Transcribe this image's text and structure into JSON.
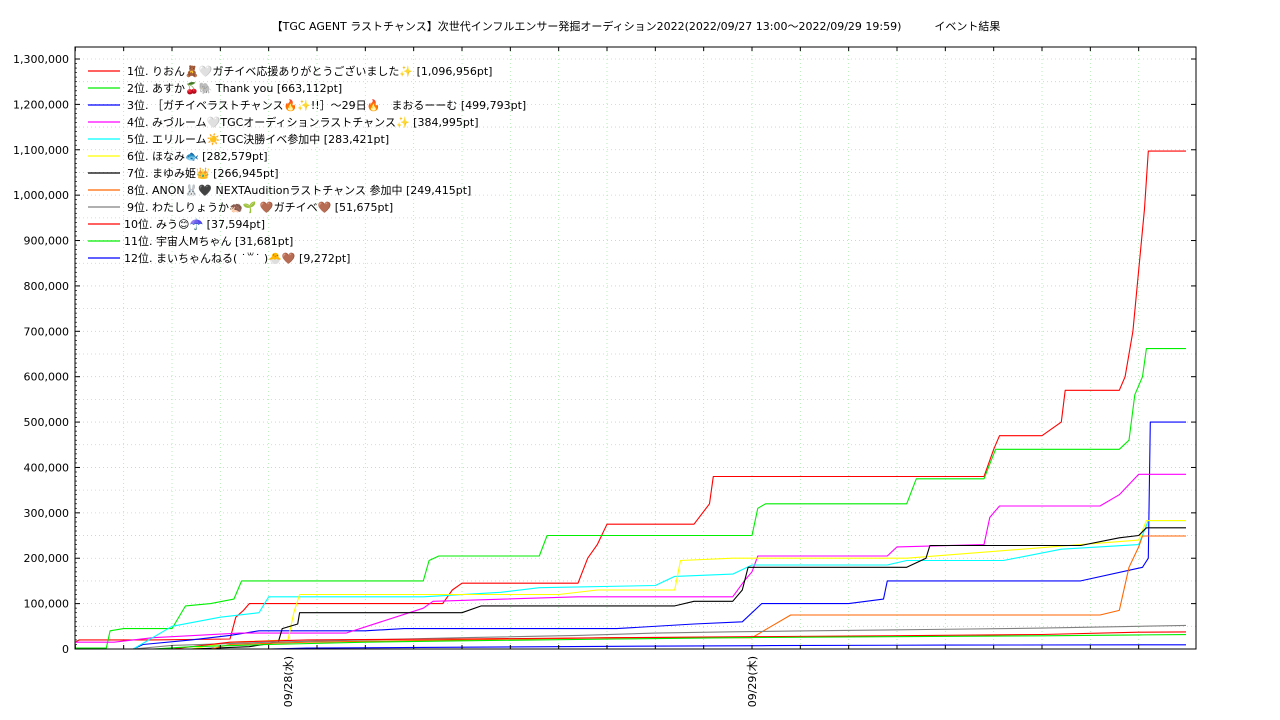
{
  "chart_data": {
    "type": "line",
    "title": "【TGC AGENT ラストチャンス】次世代インフルエンサー発掘オーディション2022(2022/09/27 13:00〜2022/09/29 19:59)　　　イベント結果",
    "xlabel": "",
    "ylabel": "",
    "xlim": [
      0,
      55
    ],
    "ylim": [
      0,
      1350000
    ],
    "x_unit": "hours since 2022/09/27 13:00",
    "x_ticks": [
      {
        "x": 11,
        "label": "09/28(水)"
      },
      {
        "x": 35,
        "label": "09/29(木)"
      }
    ],
    "y_ticks": [
      0,
      100000,
      200000,
      300000,
      400000,
      500000,
      600000,
      700000,
      800000,
      900000,
      1000000,
      1100000,
      1200000,
      1300000
    ],
    "y_tick_labels": [
      "0",
      "100,000",
      "200,000",
      "300,000",
      "400,000",
      "500,000",
      "600,000",
      "700,000",
      "800,000",
      "900,000",
      "1,000,000",
      "1,100,000",
      "1,200,000",
      "1,300,000"
    ],
    "grid": true,
    "legend_position": "top-left",
    "series": [
      {
        "name": "1位. りおん🧸🤍ガチイベ応援ありがとうございました✨ [1,096,956pt]",
        "color": "#ff0000",
        "points": [
          [
            0,
            15000
          ],
          [
            0.2,
            20000
          ],
          [
            4,
            20000
          ],
          [
            8,
            22000
          ],
          [
            8.3,
            70000
          ],
          [
            8.7,
            85000
          ],
          [
            9,
            100000
          ],
          [
            14,
            100000
          ],
          [
            19,
            100000
          ],
          [
            19.5,
            130000
          ],
          [
            20,
            145000
          ],
          [
            26,
            145000
          ],
          [
            26.5,
            200000
          ],
          [
            27,
            230000
          ],
          [
            27.5,
            275000
          ],
          [
            32,
            275000
          ],
          [
            32.8,
            320000
          ],
          [
            33,
            380000
          ],
          [
            47,
            380000
          ],
          [
            47.5,
            440000
          ],
          [
            47.8,
            470000
          ],
          [
            50,
            470000
          ],
          [
            51,
            500000
          ],
          [
            51.2,
            570000
          ],
          [
            54,
            570000
          ],
          [
            54.3,
            600000
          ],
          [
            54.7,
            700000
          ],
          [
            55.3,
            970000
          ],
          [
            55.5,
            1097000
          ],
          [
            57.6,
            1097000
          ]
        ]
      },
      {
        "name": "2位. あすか🍒🐘 Thank you [663,112pt]",
        "color": "#00ee00",
        "points": [
          [
            0,
            2000
          ],
          [
            1.6,
            2000
          ],
          [
            1.8,
            40000
          ],
          [
            2.5,
            45000
          ],
          [
            5,
            45000
          ],
          [
            5.7,
            95000
          ],
          [
            7,
            100000
          ],
          [
            8.2,
            110000
          ],
          [
            8.6,
            150000
          ],
          [
            18,
            150000
          ],
          [
            18.3,
            195000
          ],
          [
            18.8,
            205000
          ],
          [
            24,
            205000
          ],
          [
            24.4,
            250000
          ],
          [
            35,
            250000
          ],
          [
            35.3,
            310000
          ],
          [
            35.7,
            320000
          ],
          [
            43,
            320000
          ],
          [
            43.5,
            375000
          ],
          [
            47,
            375000
          ],
          [
            47.6,
            440000
          ],
          [
            54,
            440000
          ],
          [
            54.5,
            460000
          ],
          [
            54.8,
            560000
          ],
          [
            55.2,
            600000
          ],
          [
            55.4,
            662000
          ],
          [
            57.6,
            662000
          ]
        ]
      },
      {
        "name": "3位. ［ガチイベラストチャンス🔥✨!!］〜29日🔥　まおるーーむ [499,793pt]",
        "color": "#0000ff",
        "points": [
          [
            0,
            0
          ],
          [
            3,
            0
          ],
          [
            3.5,
            10000
          ],
          [
            6,
            20000
          ],
          [
            8,
            30000
          ],
          [
            9.5,
            40000
          ],
          [
            15,
            40000
          ],
          [
            17,
            45000
          ],
          [
            25,
            45000
          ],
          [
            28,
            45000
          ],
          [
            32,
            55000
          ],
          [
            34.5,
            60000
          ],
          [
            35.5,
            100000
          ],
          [
            40,
            100000
          ],
          [
            41.8,
            110000
          ],
          [
            42,
            150000
          ],
          [
            52,
            150000
          ],
          [
            55.2,
            180000
          ],
          [
            55.5,
            200000
          ],
          [
            55.6,
            500000
          ],
          [
            57.6,
            500000
          ]
        ]
      },
      {
        "name": "4位. みづルーム🤍TGCオーディションラストチャンス✨ [384,995pt]",
        "color": "#ff00ff",
        "points": [
          [
            0,
            15000
          ],
          [
            2,
            15000
          ],
          [
            4,
            25000
          ],
          [
            8.5,
            35000
          ],
          [
            14,
            35000
          ],
          [
            18,
            90000
          ],
          [
            18.5,
            105000
          ],
          [
            26,
            115000
          ],
          [
            34,
            115000
          ],
          [
            34.6,
            150000
          ],
          [
            35,
            170000
          ],
          [
            35.3,
            205000
          ],
          [
            42,
            205000
          ],
          [
            42.5,
            225000
          ],
          [
            47,
            230000
          ],
          [
            47.3,
            290000
          ],
          [
            47.8,
            315000
          ],
          [
            53,
            315000
          ],
          [
            54,
            340000
          ],
          [
            55,
            385000
          ],
          [
            57.6,
            385000
          ]
        ]
      },
      {
        "name": "5位. エリルーム☀️TGC決勝イベ参加中 [283,421pt]",
        "color": "#00ffff",
        "points": [
          [
            0,
            0
          ],
          [
            3,
            0
          ],
          [
            5,
            50000
          ],
          [
            7.5,
            70000
          ],
          [
            9.5,
            80000
          ],
          [
            10,
            115000
          ],
          [
            18,
            115000
          ],
          [
            22,
            125000
          ],
          [
            24,
            135000
          ],
          [
            30,
            140000
          ],
          [
            31,
            160000
          ],
          [
            34,
            165000
          ],
          [
            35,
            185000
          ],
          [
            42,
            185000
          ],
          [
            43,
            195000
          ],
          [
            48,
            195000
          ],
          [
            51,
            220000
          ],
          [
            55,
            230000
          ],
          [
            55.5,
            283000
          ],
          [
            57.6,
            283000
          ]
        ]
      },
      {
        "name": "6位. ほなみ🐟 [282,579pt]",
        "color": "#ffff00",
        "points": [
          [
            0,
            0
          ],
          [
            6,
            0
          ],
          [
            8,
            15000
          ],
          [
            11,
            20000
          ],
          [
            11.3,
            80000
          ],
          [
            11.6,
            120000
          ],
          [
            25,
            120000
          ],
          [
            27,
            130000
          ],
          [
            31,
            130000
          ],
          [
            31.3,
            195000
          ],
          [
            34,
            200000
          ],
          [
            38,
            200000
          ],
          [
            43,
            200000
          ],
          [
            52,
            230000
          ],
          [
            55,
            240000
          ],
          [
            55.4,
            283000
          ],
          [
            57.6,
            283000
          ]
        ]
      },
      {
        "name": "7位. まゆみ姫👑 [266,945pt]",
        "color": "#000000",
        "points": [
          [
            0,
            0
          ],
          [
            6,
            0
          ],
          [
            9,
            5000
          ],
          [
            10.5,
            15000
          ],
          [
            10.7,
            45000
          ],
          [
            11.5,
            55000
          ],
          [
            11.6,
            80000
          ],
          [
            20,
            80000
          ],
          [
            21,
            95000
          ],
          [
            31,
            95000
          ],
          [
            32,
            105000
          ],
          [
            34,
            105000
          ],
          [
            34.5,
            130000
          ],
          [
            34.8,
            180000
          ],
          [
            43,
            180000
          ],
          [
            44,
            200000
          ],
          [
            44.2,
            228000
          ],
          [
            52,
            228000
          ],
          [
            54,
            245000
          ],
          [
            55,
            250000
          ],
          [
            55.4,
            267000
          ],
          [
            57.6,
            267000
          ]
        ]
      },
      {
        "name": "8位. ANON🐰🖤 NEXTAuditionラストチャンス 参加中 [249,415pt]",
        "color": "#ff6600",
        "points": [
          [
            0,
            0
          ],
          [
            7,
            0
          ],
          [
            8,
            10000
          ],
          [
            12,
            15000
          ],
          [
            20,
            20000
          ],
          [
            28,
            25000
          ],
          [
            35,
            25000
          ],
          [
            36,
            50000
          ],
          [
            37,
            75000
          ],
          [
            48,
            75000
          ],
          [
            53,
            75000
          ],
          [
            54,
            85000
          ],
          [
            54.5,
            180000
          ],
          [
            55,
            225000
          ],
          [
            55.2,
            249000
          ],
          [
            57.6,
            249000
          ]
        ]
      },
      {
        "name": "9位. わたしりょうか🦔🌱 🤎ガチイベ🤎 [51,675pt]",
        "color": "#808080",
        "points": [
          [
            0,
            0
          ],
          [
            3,
            0
          ],
          [
            5,
            8000
          ],
          [
            8,
            12000
          ],
          [
            10,
            15000
          ],
          [
            15,
            20000
          ],
          [
            20,
            25000
          ],
          [
            26,
            30000
          ],
          [
            30,
            35000
          ],
          [
            34,
            38000
          ],
          [
            38,
            40000
          ],
          [
            44,
            43000
          ],
          [
            50,
            46000
          ],
          [
            55,
            50000
          ],
          [
            57.6,
            52000
          ]
        ]
      },
      {
        "name": "10位. みう😊☂️ [37,594pt]",
        "color": "#ff0000",
        "points": [
          [
            0,
            0
          ],
          [
            5,
            0
          ],
          [
            8,
            15000
          ],
          [
            12,
            20000
          ],
          [
            20,
            22000
          ],
          [
            28,
            25000
          ],
          [
            35,
            27000
          ],
          [
            42,
            29000
          ],
          [
            50,
            32000
          ],
          [
            55,
            37000
          ],
          [
            57.6,
            37600
          ]
        ]
      },
      {
        "name": "11位. 宇宙人Mちゃん [31,681pt]",
        "color": "#00ee00",
        "points": [
          [
            0,
            0
          ],
          [
            4,
            0
          ],
          [
            6,
            5000
          ],
          [
            10,
            10000
          ],
          [
            15,
            15000
          ],
          [
            20,
            18000
          ],
          [
            28,
            22000
          ],
          [
            34,
            25000
          ],
          [
            42,
            27000
          ],
          [
            50,
            29000
          ],
          [
            55,
            31000
          ],
          [
            57.6,
            31700
          ]
        ]
      },
      {
        "name": "12位. まいちゃんねる( ˙꒳˙ )🐣🤎 [9,272pt]",
        "color": "#0000ff",
        "points": [
          [
            0,
            0
          ],
          [
            10,
            0
          ],
          [
            12,
            2000
          ],
          [
            20,
            4000
          ],
          [
            28,
            6000
          ],
          [
            36,
            7500
          ],
          [
            45,
            8500
          ],
          [
            57.6,
            9300
          ]
        ]
      }
    ]
  }
}
